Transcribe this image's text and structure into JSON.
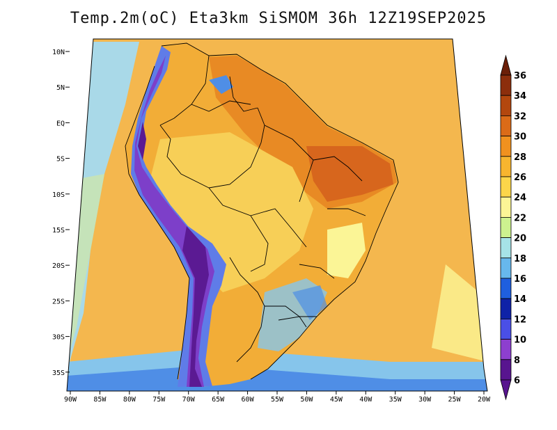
{
  "title": "Temp.2m(oC) Eta3km SiSMOM 36h 12Z19SEP2025",
  "lat_labels": [
    "10N",
    "5N",
    "EQ",
    "5S",
    "10S",
    "15S",
    "20S",
    "25S",
    "30S",
    "35S"
  ],
  "lon_labels": [
    "90W",
    "85W",
    "80W",
    "75W",
    "70W",
    "65W",
    "60W",
    "55W",
    "50W",
    "45W",
    "40W",
    "35W",
    "30W",
    "25W",
    "20W"
  ],
  "colorbar": {
    "labels": [
      "36",
      "34",
      "32",
      "30",
      "28",
      "26",
      "24",
      "22",
      "20",
      "18",
      "16",
      "14",
      "12",
      "10",
      "8",
      "6"
    ],
    "colors": [
      "#6b1f08",
      "#8c2e0c",
      "#b3470e",
      "#db6b18",
      "#f1911f",
      "#f7b52f",
      "#fbd64a",
      "#fbf596",
      "#cdf28f",
      "#a6e3e7",
      "#67b8ec",
      "#1f5fdf",
      "#0f22a7",
      "#4a4fe6",
      "#8d3fcf",
      "#58158f"
    ]
  },
  "palette": {
    "ocean": "#f4b74e",
    "ocean_cool": "#a9d9e8",
    "land": "#f2ad37",
    "land_warm": "#e88a24",
    "land_hot": "#d7661d",
    "land_mild": "#f7cf57",
    "andes_cold": "#5b1a93",
    "andes_mid": "#7d3fc9",
    "andes_edge": "#5f7ce8",
    "south_cool": "#86c5eb",
    "south_blue": "#4f8ee6",
    "border": "#000000"
  }
}
